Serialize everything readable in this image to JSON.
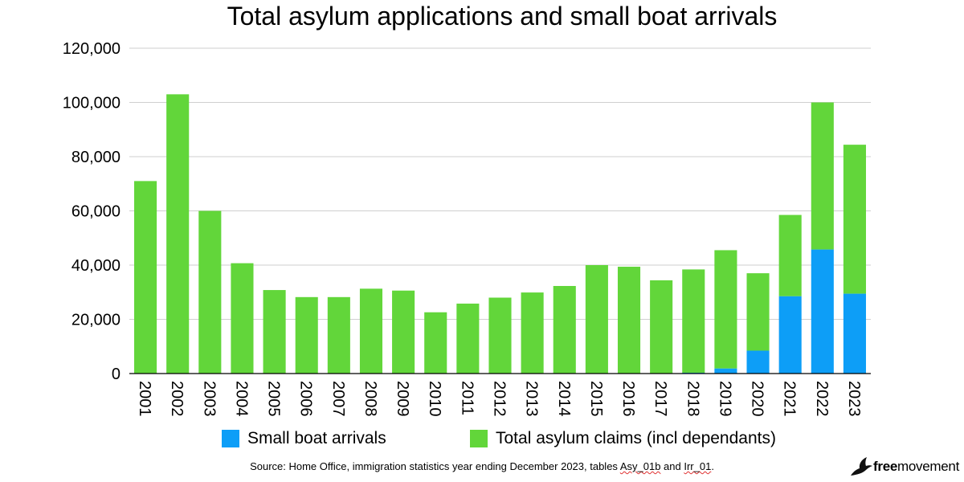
{
  "chart_data": {
    "type": "bar",
    "stacked": true,
    "title": "Total asylum applications and small boat arrivals",
    "categories": [
      "2001",
      "2002",
      "2003",
      "2004",
      "2005",
      "2006",
      "2007",
      "2008",
      "2009",
      "2010",
      "2011",
      "2012",
      "2013",
      "2014",
      "2015",
      "2016",
      "2017",
      "2018",
      "2019",
      "2020",
      "2021",
      "2022",
      "2023"
    ],
    "series": [
      {
        "name": "Small boat arrivals",
        "color": "#0d9ef7",
        "values": [
          0,
          0,
          0,
          0,
          0,
          0,
          0,
          0,
          0,
          0,
          0,
          0,
          0,
          0,
          0,
          0,
          0,
          300,
          1850,
          8450,
          28500,
          45750,
          29450
        ]
      },
      {
        "name": "Total asylum claims (incl dependants)",
        "color": "#62d63a",
        "totals": [
          71000,
          103000,
          60000,
          40700,
          30800,
          28200,
          28200,
          31300,
          30600,
          22600,
          25800,
          28000,
          29900,
          32300,
          40000,
          39400,
          34400,
          38400,
          45500,
          37000,
          58500,
          100000,
          84400
        ]
      }
    ],
    "ylim": [
      0,
      120000
    ],
    "yticks": [
      0,
      20000,
      40000,
      60000,
      80000,
      100000,
      120000
    ],
    "ytick_labels": [
      "0",
      "20,000",
      "40,000",
      "60,000",
      "80,000",
      "100,000",
      "120,000"
    ],
    "grid": true,
    "legend_position": "bottom"
  },
  "source_note": {
    "prefix": "Source: Home Office, immigration statistics year ending December 2023, tables ",
    "table1": "Asy_01b",
    "middle": " and ",
    "table2": "Irr_01",
    "suffix": "."
  },
  "brand": {
    "bold": "free",
    "rest": "movement",
    "icon": "bird-logo-icon"
  }
}
